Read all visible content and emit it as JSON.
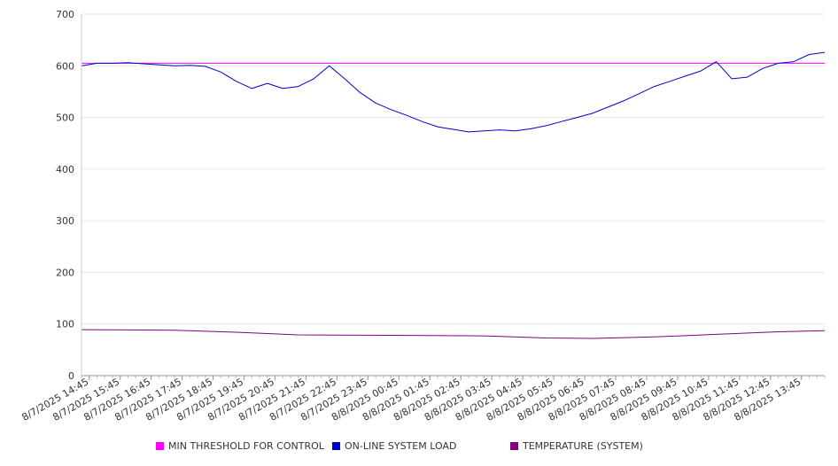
{
  "chart_data": {
    "type": "line",
    "title": "",
    "xlabel": "",
    "ylabel": "",
    "ylim": [
      0,
      700
    ],
    "yticks": [
      "0",
      "100",
      "200",
      "300",
      "400",
      "500",
      "600",
      "700"
    ],
    "xticks": [
      "8/7/2025 14:45",
      "8/7/2025 15:45",
      "8/7/2025 16:45",
      "8/7/2025 17:45",
      "8/7/2025 18:45",
      "8/7/2025 19:45",
      "8/7/2025 20:45",
      "8/7/2025 21:45",
      "8/7/2025 22:45",
      "8/7/2025 23:45",
      "8/8/2025 00:45",
      "8/8/2025 01:45",
      "8/8/2025 02:45",
      "8/8/2025 03:45",
      "8/8/2025 04:45",
      "8/8/2025 05:45",
      "8/8/2025 06:45",
      "8/8/2025 07:45",
      "8/8/2025 08:45",
      "8/8/2025 09:45",
      "8/8/2025 10:45",
      "8/8/2025 11:45",
      "8/8/2025 12:45",
      "8/8/2025 13:45"
    ],
    "grid": true,
    "legend_position": "bottom",
    "series": [
      {
        "name": "MIN THRESHOLD FOR CONTROL",
        "color": "#ff00ff",
        "x": [
          "8/7/2025 14:30",
          "8/8/2025 14:30"
        ],
        "y": [
          605,
          605
        ]
      },
      {
        "name": "ON-LINE SYSTEM LOAD",
        "color": "#0000cc",
        "x": [
          "8/7/2025 14:30",
          "8/7/2025 15:00",
          "8/7/2025 15:30",
          "8/7/2025 16:00",
          "8/7/2025 16:30",
          "8/7/2025 17:00",
          "8/7/2025 17:30",
          "8/7/2025 18:00",
          "8/7/2025 18:30",
          "8/7/2025 19:00",
          "8/7/2025 19:30",
          "8/7/2025 20:00",
          "8/7/2025 20:30",
          "8/7/2025 21:00",
          "8/7/2025 21:30",
          "8/7/2025 22:00",
          "8/7/2025 22:30",
          "8/7/2025 23:00",
          "8/7/2025 23:30",
          "8/8/2025 00:00",
          "8/8/2025 00:30",
          "8/8/2025 01:00",
          "8/8/2025 01:30",
          "8/8/2025 02:00",
          "8/8/2025 02:30",
          "8/8/2025 03:00",
          "8/8/2025 03:30",
          "8/8/2025 04:00",
          "8/8/2025 04:30",
          "8/8/2025 05:00",
          "8/8/2025 05:30",
          "8/8/2025 06:00",
          "8/8/2025 06:30",
          "8/8/2025 07:00",
          "8/8/2025 07:30",
          "8/8/2025 08:00",
          "8/8/2025 08:30",
          "8/8/2025 09:00",
          "8/8/2025 09:30",
          "8/8/2025 10:00",
          "8/8/2025 10:30",
          "8/8/2025 11:00",
          "8/8/2025 11:30",
          "8/8/2025 12:00",
          "8/8/2025 12:30",
          "8/8/2025 13:00",
          "8/8/2025 13:30",
          "8/8/2025 14:00",
          "8/8/2025 14:30"
        ],
        "y": [
          600,
          605,
          605,
          606,
          604,
          602,
          600,
          601,
          599,
          588,
          570,
          556,
          566,
          556,
          560,
          575,
          600,
          575,
          548,
          528,
          515,
          504,
          492,
          482,
          477,
          472,
          474,
          476,
          474,
          478,
          484,
          492,
          500,
          508,
          520,
          532,
          546,
          560,
          570,
          580,
          590,
          608,
          575,
          578,
          595,
          605,
          608,
          622,
          626
        ]
      },
      {
        "name": "TEMPERATURE (SYSTEM)",
        "color": "#800080",
        "x": [
          "8/7/2025 14:30",
          "8/7/2025 17:30",
          "8/7/2025 19:30",
          "8/7/2025 21:30",
          "8/8/2025 00:30",
          "8/8/2025 03:30",
          "8/8/2025 05:30",
          "8/8/2025 07:00",
          "8/8/2025 09:00",
          "8/8/2025 11:00",
          "8/8/2025 13:00",
          "8/8/2025 14:30"
        ],
        "y": [
          89,
          88,
          84,
          79,
          78,
          77,
          73,
          72,
          75,
          80,
          85,
          87
        ]
      }
    ]
  }
}
